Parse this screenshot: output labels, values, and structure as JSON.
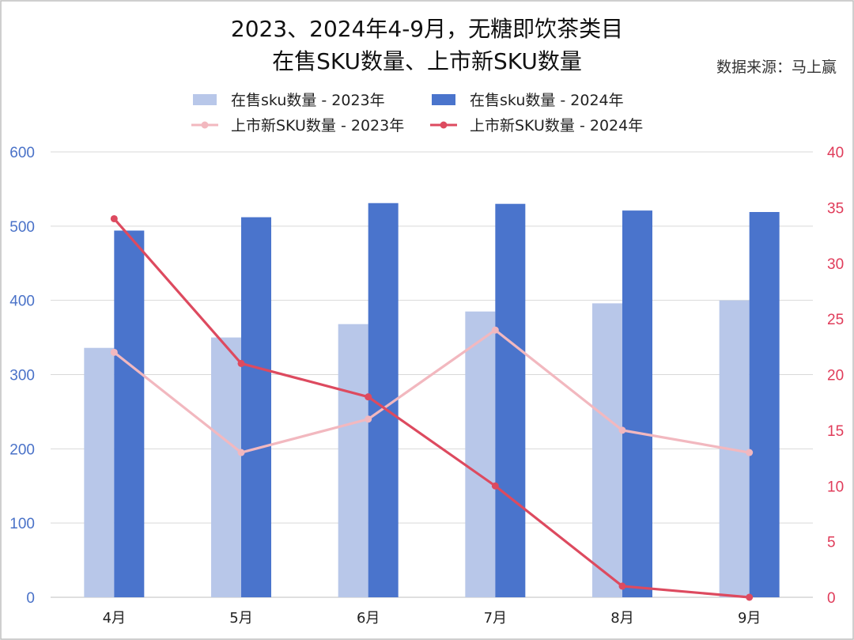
{
  "title_line1": "2023、2024年4-9月，无糖即饮茶类目",
  "title_line2": "在售SKU数量、上市新SKU数量",
  "source": "数据来源：马上赢",
  "colors": {
    "bar_2023": "#b8c7e9",
    "bar_2024": "#4a74cc",
    "line_2023": "#f2b8bf",
    "line_2024": "#dd4a5f",
    "axis_left": "#4a72c8",
    "axis_right": "#e03c5a",
    "grid": "#d9d9d9",
    "border": "#bfbfbf"
  },
  "chart_data": {
    "type": "bar",
    "categories": [
      "4月",
      "5月",
      "6月",
      "7月",
      "8月",
      "9月"
    ],
    "series": [
      {
        "name": "在售sku数量 - 2023年",
        "kind": "bar",
        "axis": "left",
        "values": [
          336,
          350,
          368,
          385,
          396,
          400
        ]
      },
      {
        "name": "在售sku数量 - 2024年",
        "kind": "bar",
        "axis": "left",
        "values": [
          494,
          512,
          531,
          530,
          521,
          519
        ]
      },
      {
        "name": "上市新SKU数量 - 2023年",
        "kind": "line",
        "axis": "right",
        "values": [
          22,
          13,
          16,
          24,
          15,
          13
        ]
      },
      {
        "name": "上市新SKU数量 - 2024年",
        "kind": "line",
        "axis": "right",
        "values": [
          34,
          21,
          18,
          10,
          1,
          0
        ]
      }
    ],
    "y_left": {
      "min": 0,
      "max": 600,
      "ticks": [
        "0",
        "100",
        "200",
        "300",
        "400",
        "500",
        "600"
      ]
    },
    "y_right": {
      "min": 0,
      "max": 40,
      "ticks": [
        "0",
        "5",
        "10",
        "15",
        "20",
        "25",
        "30",
        "35",
        "40"
      ]
    },
    "legend_position": "top",
    "grid": true
  }
}
